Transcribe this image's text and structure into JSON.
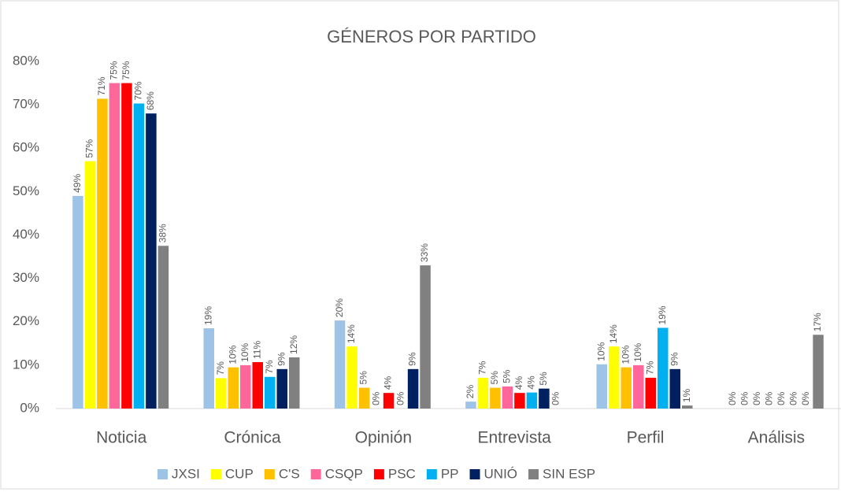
{
  "chart_data": {
    "type": "bar",
    "title": "GÉNEROS POR PARTIDO",
    "categories": [
      "Noticia",
      "Crónica",
      "Opinión",
      "Entrevista",
      "Perfil",
      "Análisis"
    ],
    "series": [
      {
        "name": "JXSI",
        "color": "#9dc3e6",
        "values": [
          49,
          18.5,
          20.3,
          1.6,
          10.2,
          0
        ],
        "value_labels": [
          "49%",
          "19%",
          "20%",
          "2%",
          "10%",
          "0%"
        ]
      },
      {
        "name": "CUP",
        "color": "#ffff00",
        "values": [
          57,
          7,
          14.3,
          7.1,
          14.3,
          0
        ],
        "value_labels": [
          "57%",
          "7%",
          "14%",
          "7%",
          "14%",
          "0%"
        ]
      },
      {
        "name": "C'S",
        "color": "#ffc000",
        "values": [
          71.4,
          9.5,
          4.8,
          4.8,
          9.5,
          0
        ],
        "value_labels": [
          "71%",
          "10%",
          "5%",
          "5%",
          "10%",
          "0%"
        ]
      },
      {
        "name": "CSQP",
        "color": "#ff6699",
        "values": [
          75,
          10,
          0,
          5.1,
          10,
          0
        ],
        "value_labels": [
          "75%",
          "10%",
          "0%",
          "5%",
          "10%",
          "0%"
        ]
      },
      {
        "name": "PSC",
        "color": "#ff0000",
        "values": [
          75,
          10.7,
          3.6,
          3.6,
          7.1,
          0
        ],
        "value_labels": [
          "75%",
          "11%",
          "4%",
          "4%",
          "7%",
          "0%"
        ]
      },
      {
        "name": "PP",
        "color": "#00b0f0",
        "values": [
          70.3,
          7.3,
          0,
          3.7,
          18.6,
          0
        ],
        "value_labels": [
          "70%",
          "7%",
          "0%",
          "4%",
          "19%",
          "0%"
        ]
      },
      {
        "name": "UNIÓ",
        "color": "#002060",
        "values": [
          68,
          9.1,
          9.1,
          4.6,
          9.1,
          0
        ],
        "value_labels": [
          "68%",
          "9%",
          "9%",
          "5%",
          "9%",
          "0%"
        ]
      },
      {
        "name": "SIN ESP",
        "color": "#808080",
        "values": [
          37.5,
          11.8,
          33,
          0,
          0.7,
          17
        ],
        "value_labels": [
          "38%",
          "12%",
          "33%",
          "0%",
          "1%",
          "17%"
        ]
      }
    ],
    "ylim": [
      0,
      80
    ],
    "yticks": [
      {
        "value": 0,
        "label": "0%"
      },
      {
        "value": 10,
        "label": "10%"
      },
      {
        "value": 20,
        "label": "20%"
      },
      {
        "value": 30,
        "label": "30%"
      },
      {
        "value": 40,
        "label": "40%"
      },
      {
        "value": 50,
        "label": "50%"
      },
      {
        "value": 60,
        "label": "60%"
      },
      {
        "value": 70,
        "label": "70%"
      },
      {
        "value": 80,
        "label": "80%"
      }
    ],
    "grid": false,
    "legend": "bottom"
  }
}
